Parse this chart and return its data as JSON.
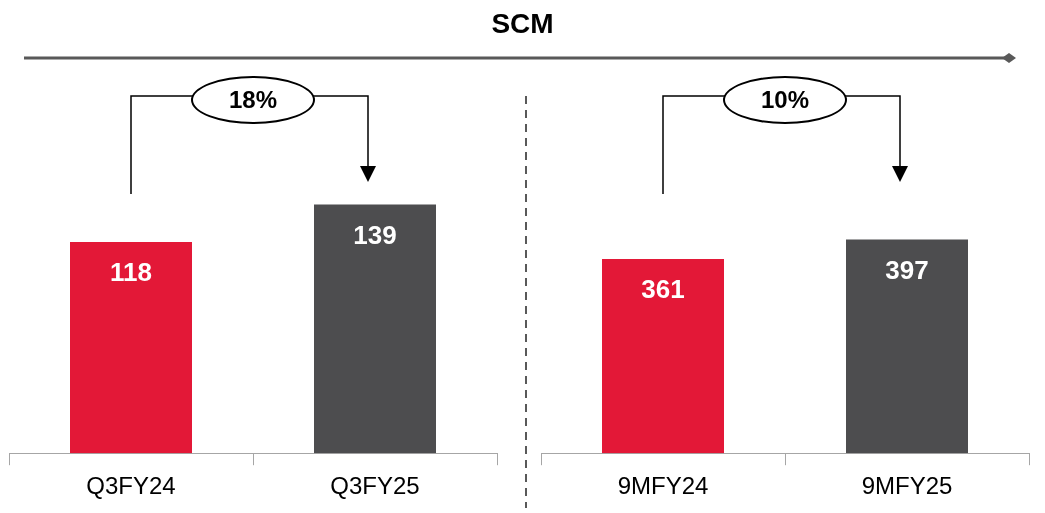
{
  "chart_data": [
    {
      "type": "bar",
      "title": "SCM",
      "categories": [
        "Q3FY24",
        "Q3FY25"
      ],
      "colors": [
        "#e31837",
        "#4d4d4f"
      ],
      "values": [
        118,
        139
      ],
      "data_labels": true,
      "annotations": [
        "18%"
      ]
    },
    {
      "type": "bar",
      "categories": [
        "9MFY24",
        "9MFY25"
      ],
      "colors": [
        "#e31837",
        "#4d4d4f"
      ],
      "values": [
        361,
        397
      ],
      "data_labels": true,
      "annotations": [
        "10%"
      ]
    }
  ]
}
